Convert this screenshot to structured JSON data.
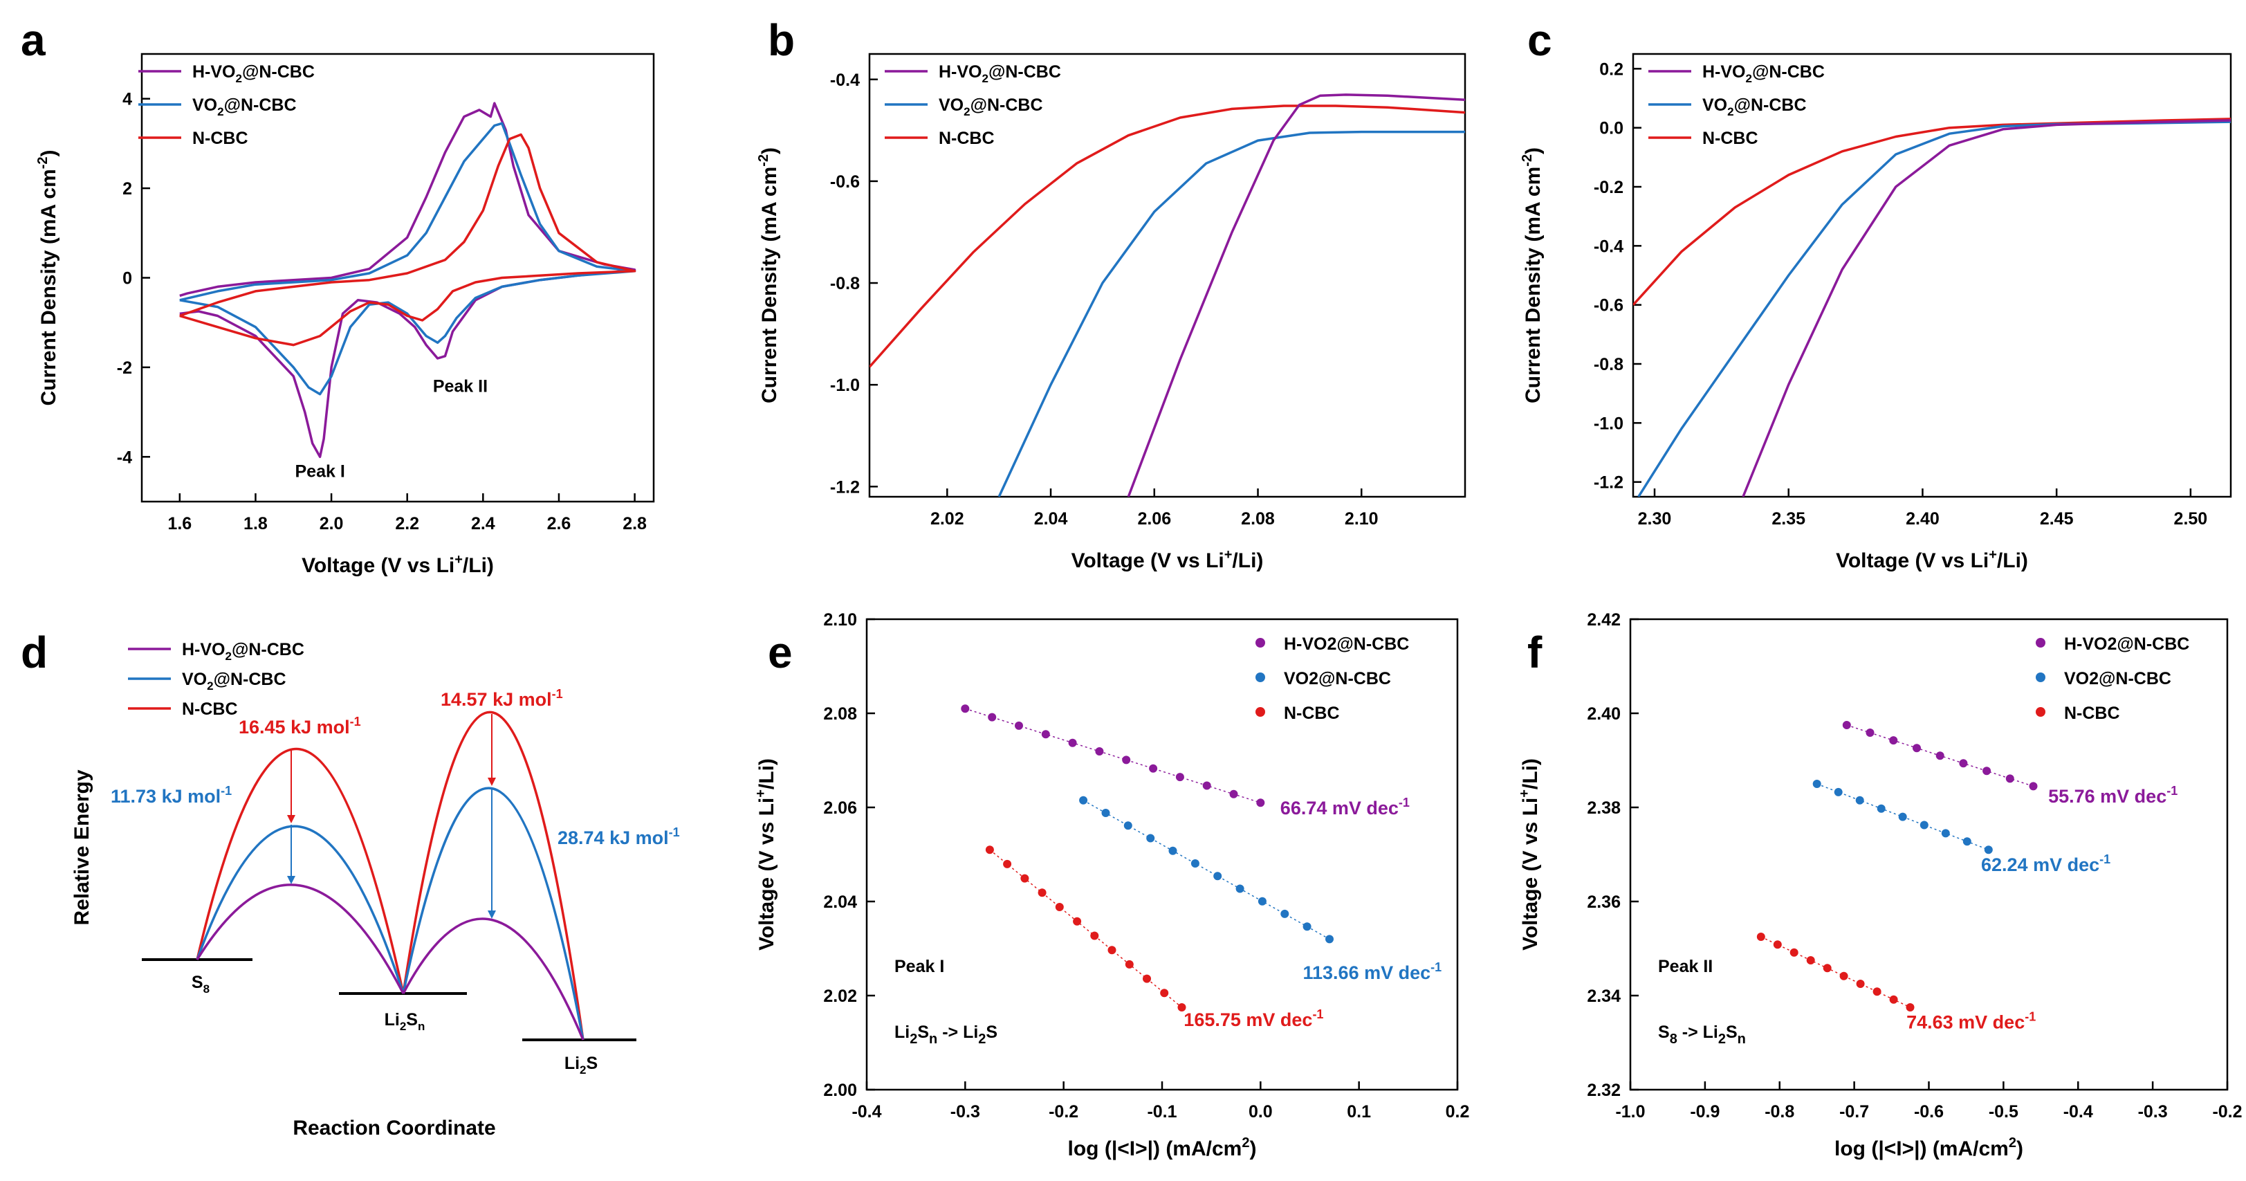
{
  "colors": {
    "h": "#8B1A9A",
    "v": "#2175C2",
    "n": "#E01B1B",
    "axis": "#000000"
  },
  "chart_data": [
    {
      "panel": "a",
      "type": "line",
      "xlabel_main": "Voltage (V vs Li",
      "xlabel_sup": "+",
      "xlabel_end": "/Li)",
      "ylabel_main": "Current Density (mA cm",
      "ylabel_sup": "-2",
      "ylabel_end": ")",
      "xlim": [
        1.5,
        2.85
      ],
      "ylim": [
        -5,
        5
      ],
      "xticks": [
        1.6,
        1.8,
        2.0,
        2.2,
        2.4,
        2.6,
        2.8
      ],
      "xtick_labels": [
        "1.6",
        "1.8",
        "2.0",
        "2.2",
        "2.4",
        "2.6",
        "2.8"
      ],
      "yticks": [
        -4,
        -2,
        0,
        2,
        4
      ],
      "ytick_labels": [
        "-4",
        "-2",
        "0",
        "2",
        "4"
      ],
      "legend": [
        {
          "key": "h",
          "pre": "H-VO",
          "sub": "2",
          "post": "@N-CBC"
        },
        {
          "key": "v",
          "pre": "VO",
          "sub": "2",
          "post": "@N-CBC"
        },
        {
          "key": "n",
          "pre": "N-CBC",
          "sub": "",
          "post": ""
        }
      ],
      "annotations": [
        "Peak I",
        "Peak II"
      ],
      "series": [
        {
          "key": "h",
          "name": "H-VO2@N-CBC",
          "x": [
            1.6,
            1.65,
            1.7,
            1.8,
            1.9,
            1.93,
            1.95,
            1.97,
            1.98,
            2.0,
            2.03,
            2.07,
            2.12,
            2.18,
            2.22,
            2.25,
            2.28,
            2.3,
            2.32,
            2.38,
            2.45,
            2.55,
            2.65,
            2.8,
            2.72,
            2.6,
            2.52,
            2.48,
            2.46,
            2.44,
            2.43,
            2.42,
            2.39,
            2.35,
            2.3,
            2.25,
            2.2,
            2.1,
            2.0,
            1.9,
            1.8,
            1.7,
            1.62,
            1.6
          ],
          "y": [
            -0.8,
            -0.75,
            -0.85,
            -1.3,
            -2.2,
            -3.0,
            -3.7,
            -4.0,
            -3.6,
            -2.0,
            -0.8,
            -0.5,
            -0.55,
            -0.8,
            -1.1,
            -1.5,
            -1.8,
            -1.75,
            -1.2,
            -0.5,
            -0.2,
            -0.05,
            0.05,
            0.18,
            0.3,
            0.6,
            1.4,
            2.5,
            3.3,
            3.7,
            3.9,
            3.6,
            3.75,
            3.6,
            2.8,
            1.8,
            0.9,
            0.2,
            0.0,
            -0.05,
            -0.1,
            -0.2,
            -0.35,
            -0.4
          ]
        },
        {
          "key": "v",
          "name": "VO2@N-CBC",
          "x": [
            1.6,
            1.7,
            1.8,
            1.9,
            1.94,
            1.97,
            2.0,
            2.05,
            2.1,
            2.15,
            2.2,
            2.25,
            2.28,
            2.3,
            2.33,
            2.38,
            2.45,
            2.55,
            2.65,
            2.8,
            2.7,
            2.6,
            2.55,
            2.5,
            2.47,
            2.45,
            2.43,
            2.4,
            2.35,
            2.3,
            2.25,
            2.2,
            2.1,
            2.0,
            1.9,
            1.8,
            1.7,
            1.6
          ],
          "y": [
            -0.5,
            -0.65,
            -1.1,
            -2.0,
            -2.45,
            -2.6,
            -2.2,
            -1.1,
            -0.6,
            -0.55,
            -0.8,
            -1.3,
            -1.45,
            -1.3,
            -0.9,
            -0.45,
            -0.2,
            -0.05,
            0.05,
            0.15,
            0.25,
            0.6,
            1.2,
            2.3,
            3.0,
            3.45,
            3.4,
            3.1,
            2.6,
            1.8,
            1.0,
            0.5,
            0.1,
            -0.05,
            -0.1,
            -0.15,
            -0.3,
            -0.5
          ]
        },
        {
          "key": "n",
          "name": "N-CBC",
          "x": [
            1.6,
            1.7,
            1.8,
            1.9,
            1.97,
            2.05,
            2.1,
            2.15,
            2.2,
            2.24,
            2.28,
            2.32,
            2.38,
            2.45,
            2.55,
            2.65,
            2.8,
            2.7,
            2.6,
            2.55,
            2.52,
            2.5,
            2.47,
            2.44,
            2.4,
            2.35,
            2.3,
            2.2,
            2.1,
            2.0,
            1.9,
            1.8,
            1.7,
            1.6
          ],
          "y": [
            -0.85,
            -1.1,
            -1.35,
            -1.5,
            -1.3,
            -0.75,
            -0.55,
            -0.6,
            -0.85,
            -0.95,
            -0.7,
            -0.3,
            -0.1,
            0.0,
            0.05,
            0.1,
            0.15,
            0.35,
            1.0,
            2.0,
            2.9,
            3.2,
            3.1,
            2.5,
            1.5,
            0.8,
            0.4,
            0.1,
            -0.05,
            -0.1,
            -0.2,
            -0.3,
            -0.55,
            -0.85
          ]
        }
      ]
    },
    {
      "panel": "b",
      "type": "line",
      "xlabel_main": "Voltage (V vs Li",
      "xlabel_sup": "+",
      "xlabel_end": "/Li)",
      "ylabel_main": "Current Density (mA cm",
      "ylabel_sup": "-2",
      "ylabel_end": ")",
      "xlim": [
        2.005,
        2.12
      ],
      "ylim": [
        -1.22,
        -0.35
      ],
      "xticks": [
        2.02,
        2.04,
        2.06,
        2.08,
        2.1
      ],
      "xtick_labels": [
        "2.02",
        "2.04",
        "2.06",
        "2.08",
        "2.10"
      ],
      "yticks": [
        -1.2,
        -1.0,
        -0.8,
        -0.6,
        -0.4
      ],
      "ytick_labels": [
        "-1.2",
        "-1.0",
        "-0.8",
        "-0.6",
        "-0.4"
      ],
      "legend": [
        {
          "key": "h",
          "pre": "H-VO",
          "sub": "2",
          "post": "@N-CBC"
        },
        {
          "key": "v",
          "pre": "VO",
          "sub": "2",
          "post": "@N-CBC"
        },
        {
          "key": "n",
          "pre": "N-CBC",
          "sub": "",
          "post": ""
        }
      ],
      "series": [
        {
          "key": "n",
          "name": "N-CBC",
          "x": [
            2.005,
            2.015,
            2.025,
            2.035,
            2.045,
            2.055,
            2.065,
            2.075,
            2.085,
            2.095,
            2.105,
            2.12
          ],
          "y": [
            -0.965,
            -0.85,
            -0.74,
            -0.645,
            -0.565,
            -0.51,
            -0.475,
            -0.458,
            -0.452,
            -0.452,
            -0.455,
            -0.465
          ]
        },
        {
          "key": "v",
          "name": "VO2@N-CBC",
          "x": [
            2.03,
            2.04,
            2.05,
            2.06,
            2.07,
            2.08,
            2.09,
            2.1,
            2.12
          ],
          "y": [
            -1.22,
            -1.0,
            -0.8,
            -0.66,
            -0.565,
            -0.52,
            -0.505,
            -0.503,
            -0.503
          ]
        },
        {
          "key": "h",
          "name": "H-VO2@N-CBC",
          "x": [
            2.055,
            2.065,
            2.075,
            2.083,
            2.088,
            2.092,
            2.097,
            2.105,
            2.12
          ],
          "y": [
            -1.22,
            -0.95,
            -0.7,
            -0.52,
            -0.45,
            -0.432,
            -0.43,
            -0.432,
            -0.44
          ]
        }
      ]
    },
    {
      "panel": "c",
      "type": "line",
      "xlabel_main": "Voltage (V vs Li",
      "xlabel_sup": "+",
      "xlabel_end": "/Li)",
      "ylabel_main": "Current Density (mA cm",
      "ylabel_sup": "-2",
      "ylabel_end": ")",
      "xlim": [
        2.292,
        2.515
      ],
      "ylim": [
        -1.25,
        0.25
      ],
      "xticks": [
        2.3,
        2.35,
        2.4,
        2.45,
        2.5
      ],
      "xtick_labels": [
        "2.30",
        "2.35",
        "2.40",
        "2.45",
        "2.50"
      ],
      "yticks": [
        -1.2,
        -1.0,
        -0.8,
        -0.6,
        -0.4,
        -0.2,
        0.0,
        0.2
      ],
      "ytick_labels": [
        "-1.2",
        "-1.0",
        "-0.8",
        "-0.6",
        "-0.4",
        "-0.2",
        "0.0",
        "0.2"
      ],
      "legend": [
        {
          "key": "h",
          "pre": "H-VO",
          "sub": "2",
          "post": "@N-CBC"
        },
        {
          "key": "v",
          "pre": "VO",
          "sub": "2",
          "post": "@N-CBC"
        },
        {
          "key": "n",
          "pre": "N-CBC",
          "sub": "",
          "post": ""
        }
      ],
      "series": [
        {
          "key": "n",
          "name": "N-CBC",
          "x": [
            2.292,
            2.31,
            2.33,
            2.35,
            2.37,
            2.39,
            2.41,
            2.43,
            2.45,
            2.47,
            2.49,
            2.515
          ],
          "y": [
            -0.6,
            -0.42,
            -0.27,
            -0.16,
            -0.08,
            -0.03,
            0.0,
            0.01,
            0.015,
            0.02,
            0.025,
            0.03
          ]
        },
        {
          "key": "v",
          "name": "VO2@N-CBC",
          "x": [
            2.294,
            2.31,
            2.33,
            2.35,
            2.37,
            2.39,
            2.41,
            2.43,
            2.45,
            2.48,
            2.515
          ],
          "y": [
            -1.25,
            -1.02,
            -0.76,
            -0.5,
            -0.26,
            -0.09,
            -0.02,
            0.005,
            0.012,
            0.015,
            0.02
          ]
        },
        {
          "key": "h",
          "name": "H-VO2@N-CBC",
          "x": [
            2.333,
            2.35,
            2.37,
            2.39,
            2.41,
            2.43,
            2.45,
            2.48,
            2.515
          ],
          "y": [
            -1.25,
            -0.87,
            -0.48,
            -0.2,
            -0.06,
            -0.005,
            0.01,
            0.018,
            0.025
          ]
        }
      ]
    },
    {
      "panel": "d",
      "type": "diagram",
      "xlabel": "Reaction Coordinate",
      "ylabel": "Relative Energy",
      "legend": [
        {
          "key": "h",
          "pre": "H-VO",
          "sub": "2",
          "post": "@N-CBC"
        },
        {
          "key": "v",
          "pre": "VO",
          "sub": "2",
          "post": "@N-CBC"
        },
        {
          "key": "n",
          "pre": "N-CBC",
          "sub": "",
          "post": ""
        }
      ],
      "states": [
        {
          "pre": "S",
          "sub": "8",
          "post": ""
        },
        {
          "pre": "Li",
          "sub": "2",
          "post": "S",
          "sub2": "n"
        },
        {
          "pre": "Li",
          "sub": "2",
          "post": "S"
        }
      ],
      "barriers": [
        {
          "value_text": "16.45 kJ mol",
          "sup": "-1",
          "color_key": "n"
        },
        {
          "value_text": "11.73 kJ mol",
          "sup": "-1",
          "color_key": "v"
        },
        {
          "value_text": "14.57 kJ mol",
          "sup": "-1",
          "color_key": "n"
        },
        {
          "value_text": "28.74 kJ mol",
          "sup": "-1",
          "color_key": "v"
        }
      ]
    },
    {
      "panel": "e",
      "type": "scatter",
      "xlabel": "log (|<I>|) (mA/cm",
      "xlabel_sup": "2",
      "xlabel_end": ")",
      "ylabel_main": "Voltage (V vs Li",
      "ylabel_sup": "+",
      "ylabel_end": "/Li)",
      "xlim": [
        -0.4,
        0.2
      ],
      "ylim": [
        2.0,
        2.1
      ],
      "xticks": [
        -0.4,
        -0.3,
        -0.2,
        -0.1,
        0.0,
        0.1,
        0.2
      ],
      "xtick_labels": [
        "-0.4",
        "-0.3",
        "-0.2",
        "-0.1",
        "0.0",
        "0.1",
        "0.2"
      ],
      "yticks": [
        2.0,
        2.02,
        2.04,
        2.06,
        2.08,
        2.1
      ],
      "ytick_labels": [
        "2.00",
        "2.02",
        "2.04",
        "2.06",
        "2.08",
        "2.10"
      ],
      "legend": [
        {
          "key": "h",
          "label": "H-VO2@N-CBC"
        },
        {
          "key": "v",
          "label": "VO2@N-CBC"
        },
        {
          "key": "n",
          "label": "N-CBC"
        }
      ],
      "peak_label": "Peak I",
      "reaction": {
        "a1": "Li",
        "a2": "2",
        "a3": "S",
        "a4": "n",
        "arrow": " -> Li",
        "b2": "2",
        "b3": "S"
      },
      "slopes": [
        {
          "key": "h",
          "text": "66.74 mV dec",
          "sup": "-1"
        },
        {
          "key": "v",
          "text": "113.66 mV dec",
          "sup": "-1"
        },
        {
          "key": "n",
          "text": "165.75 mV dec",
          "sup": "-1"
        }
      ],
      "series": [
        {
          "key": "h",
          "x0": -0.3,
          "x1": 0.0,
          "n": 12,
          "y0": 2.081,
          "y1": 2.061
        },
        {
          "key": "v",
          "x0": -0.18,
          "x1": 0.07,
          "n": 12,
          "y0": 2.0615,
          "y1": 2.032
        },
        {
          "key": "n",
          "x0": -0.275,
          "x1": -0.08,
          "n": 12,
          "y0": 2.051,
          "y1": 2.0175
        }
      ]
    },
    {
      "panel": "f",
      "type": "scatter",
      "xlabel": "log (|<I>|) (mA/cm",
      "xlabel_sup": "2",
      "xlabel_end": ")",
      "ylabel_main": "Voltage (V vs Li",
      "ylabel_sup": "+",
      "ylabel_end": "/Li)",
      "xlim": [
        -1.0,
        -0.2
      ],
      "ylim": [
        2.32,
        2.42
      ],
      "xticks": [
        -1.0,
        -0.9,
        -0.8,
        -0.7,
        -0.6,
        -0.5,
        -0.4,
        -0.3,
        -0.2
      ],
      "xtick_labels": [
        "-1.0",
        "-0.9",
        "-0.8",
        "-0.7",
        "-0.6",
        "-0.5",
        "-0.4",
        "-0.3",
        "-0.2"
      ],
      "yticks": [
        2.32,
        2.34,
        2.36,
        2.38,
        2.4,
        2.42
      ],
      "ytick_labels": [
        "2.32",
        "2.34",
        "2.36",
        "2.38",
        "2.40",
        "2.42"
      ],
      "legend": [
        {
          "key": "h",
          "label": "H-VO2@N-CBC"
        },
        {
          "key": "v",
          "label": "VO2@N-CBC"
        },
        {
          "key": "n",
          "label": "N-CBC"
        }
      ],
      "peak_label": "Peak II",
      "reaction": {
        "a1": "S",
        "a2": "8",
        "a3": "",
        "a4": "",
        "arrow": " -> Li",
        "b2": "2",
        "b3": "S",
        "b4": "n"
      },
      "slopes": [
        {
          "key": "h",
          "text": "55.76 mV dec",
          "sup": "-1"
        },
        {
          "key": "v",
          "text": "62.24 mV dec",
          "sup": "-1"
        },
        {
          "key": "n",
          "text": "74.63 mV dec",
          "sup": "-1"
        }
      ],
      "series": [
        {
          "key": "h",
          "x0": -0.71,
          "x1": -0.46,
          "n": 9,
          "y0": 2.3975,
          "y1": 2.3845
        },
        {
          "key": "v",
          "x0": -0.75,
          "x1": -0.52,
          "n": 9,
          "y0": 2.385,
          "y1": 2.371
        },
        {
          "key": "n",
          "x0": -0.825,
          "x1": -0.625,
          "n": 10,
          "y0": 2.3525,
          "y1": 2.3375
        }
      ]
    }
  ]
}
